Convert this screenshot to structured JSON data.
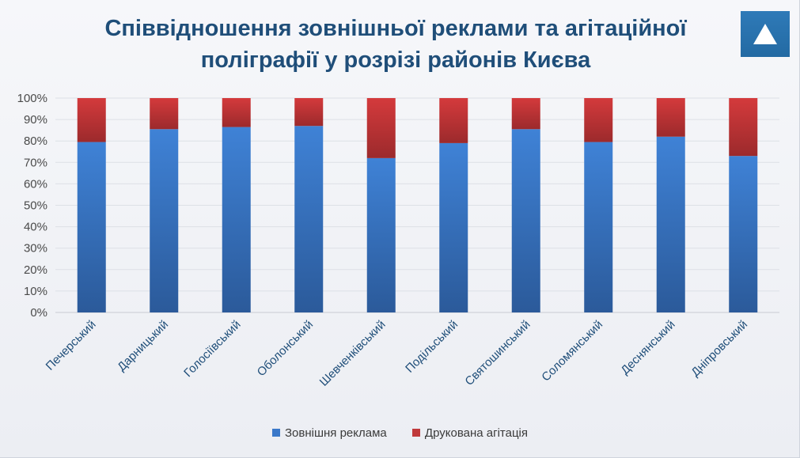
{
  "title": {
    "line1": "Співвідношення зовнішньої реклами та агітаційної",
    "line2": "поліграфії у розрізі районів Києва"
  },
  "logo": {
    "icon": "triangle-up-icon",
    "color": "#2e75b6"
  },
  "legend": {
    "items": [
      {
        "label": "Зовнішня реклама",
        "color": "#3a78c9"
      },
      {
        "label": "Друкована агітація",
        "color": "#c0393b"
      }
    ]
  },
  "chart_data": {
    "type": "bar",
    "stacked": true,
    "title": "Співвідношення зовнішньої реклами та агітаційної поліграфії у розрізі районів Києва",
    "categories": [
      "Печерський",
      "Дарницький",
      "Голосіївський",
      "Оболонський",
      "Шевченківський",
      "Подільський",
      "Святошинський",
      "Соломянський",
      "Деснянський",
      "Дніпровський"
    ],
    "series": [
      {
        "name": "Зовнішня реклама",
        "color": "#3a78c9",
        "values": [
          79.5,
          85.5,
          86.5,
          87,
          72,
          79,
          85.5,
          79.5,
          82,
          73
        ]
      },
      {
        "name": "Друкована агітація",
        "color": "#c0393b",
        "values": [
          20.5,
          14.5,
          13.5,
          13,
          28,
          21,
          14.5,
          20.5,
          18,
          27
        ]
      }
    ],
    "ylim": [
      0,
      100
    ],
    "yticks": [
      "0%",
      "10%",
      "20%",
      "30%",
      "40%",
      "50%",
      "60%",
      "70%",
      "80%",
      "90%",
      "100%"
    ],
    "grid": true,
    "legend_position": "bottom"
  }
}
